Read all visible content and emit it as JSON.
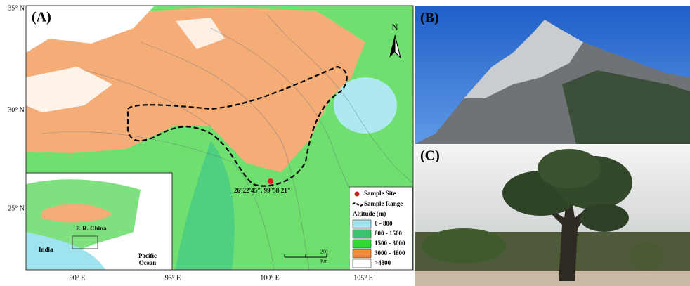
{
  "panels": [
    "(A)",
    "(B)",
    "(C)"
  ],
  "map": {
    "latitude_labels": [
      "35° N",
      "30° N",
      "25° N"
    ],
    "longitude_labels": [
      "90° E",
      "95° E",
      "100° E",
      "105° E"
    ],
    "north": "N",
    "coordinates": "26°22'45\", 99°58'21\"",
    "scale": {
      "number": "200",
      "unit": "Km"
    },
    "inset": {
      "country": "P. R. China",
      "india": "India",
      "ocean": [
        "Pacific",
        "Ocean"
      ]
    },
    "legend": {
      "sample_site": "Sample Site",
      "sample_range": "Sample Range",
      "altitude_title": "Altitude (m)",
      "classes": [
        {
          "label": "0 - 800",
          "color": "#9ee3ee"
        },
        {
          "label": "800 - 1500",
          "color": "#3cc36c"
        },
        {
          "label": "1500 - 3000",
          "color": "#34d834"
        },
        {
          "label": "3000 - 4800",
          "color": "#f5893d"
        },
        {
          "label": ">4800",
          "color": "#ffffff"
        }
      ]
    }
  }
}
